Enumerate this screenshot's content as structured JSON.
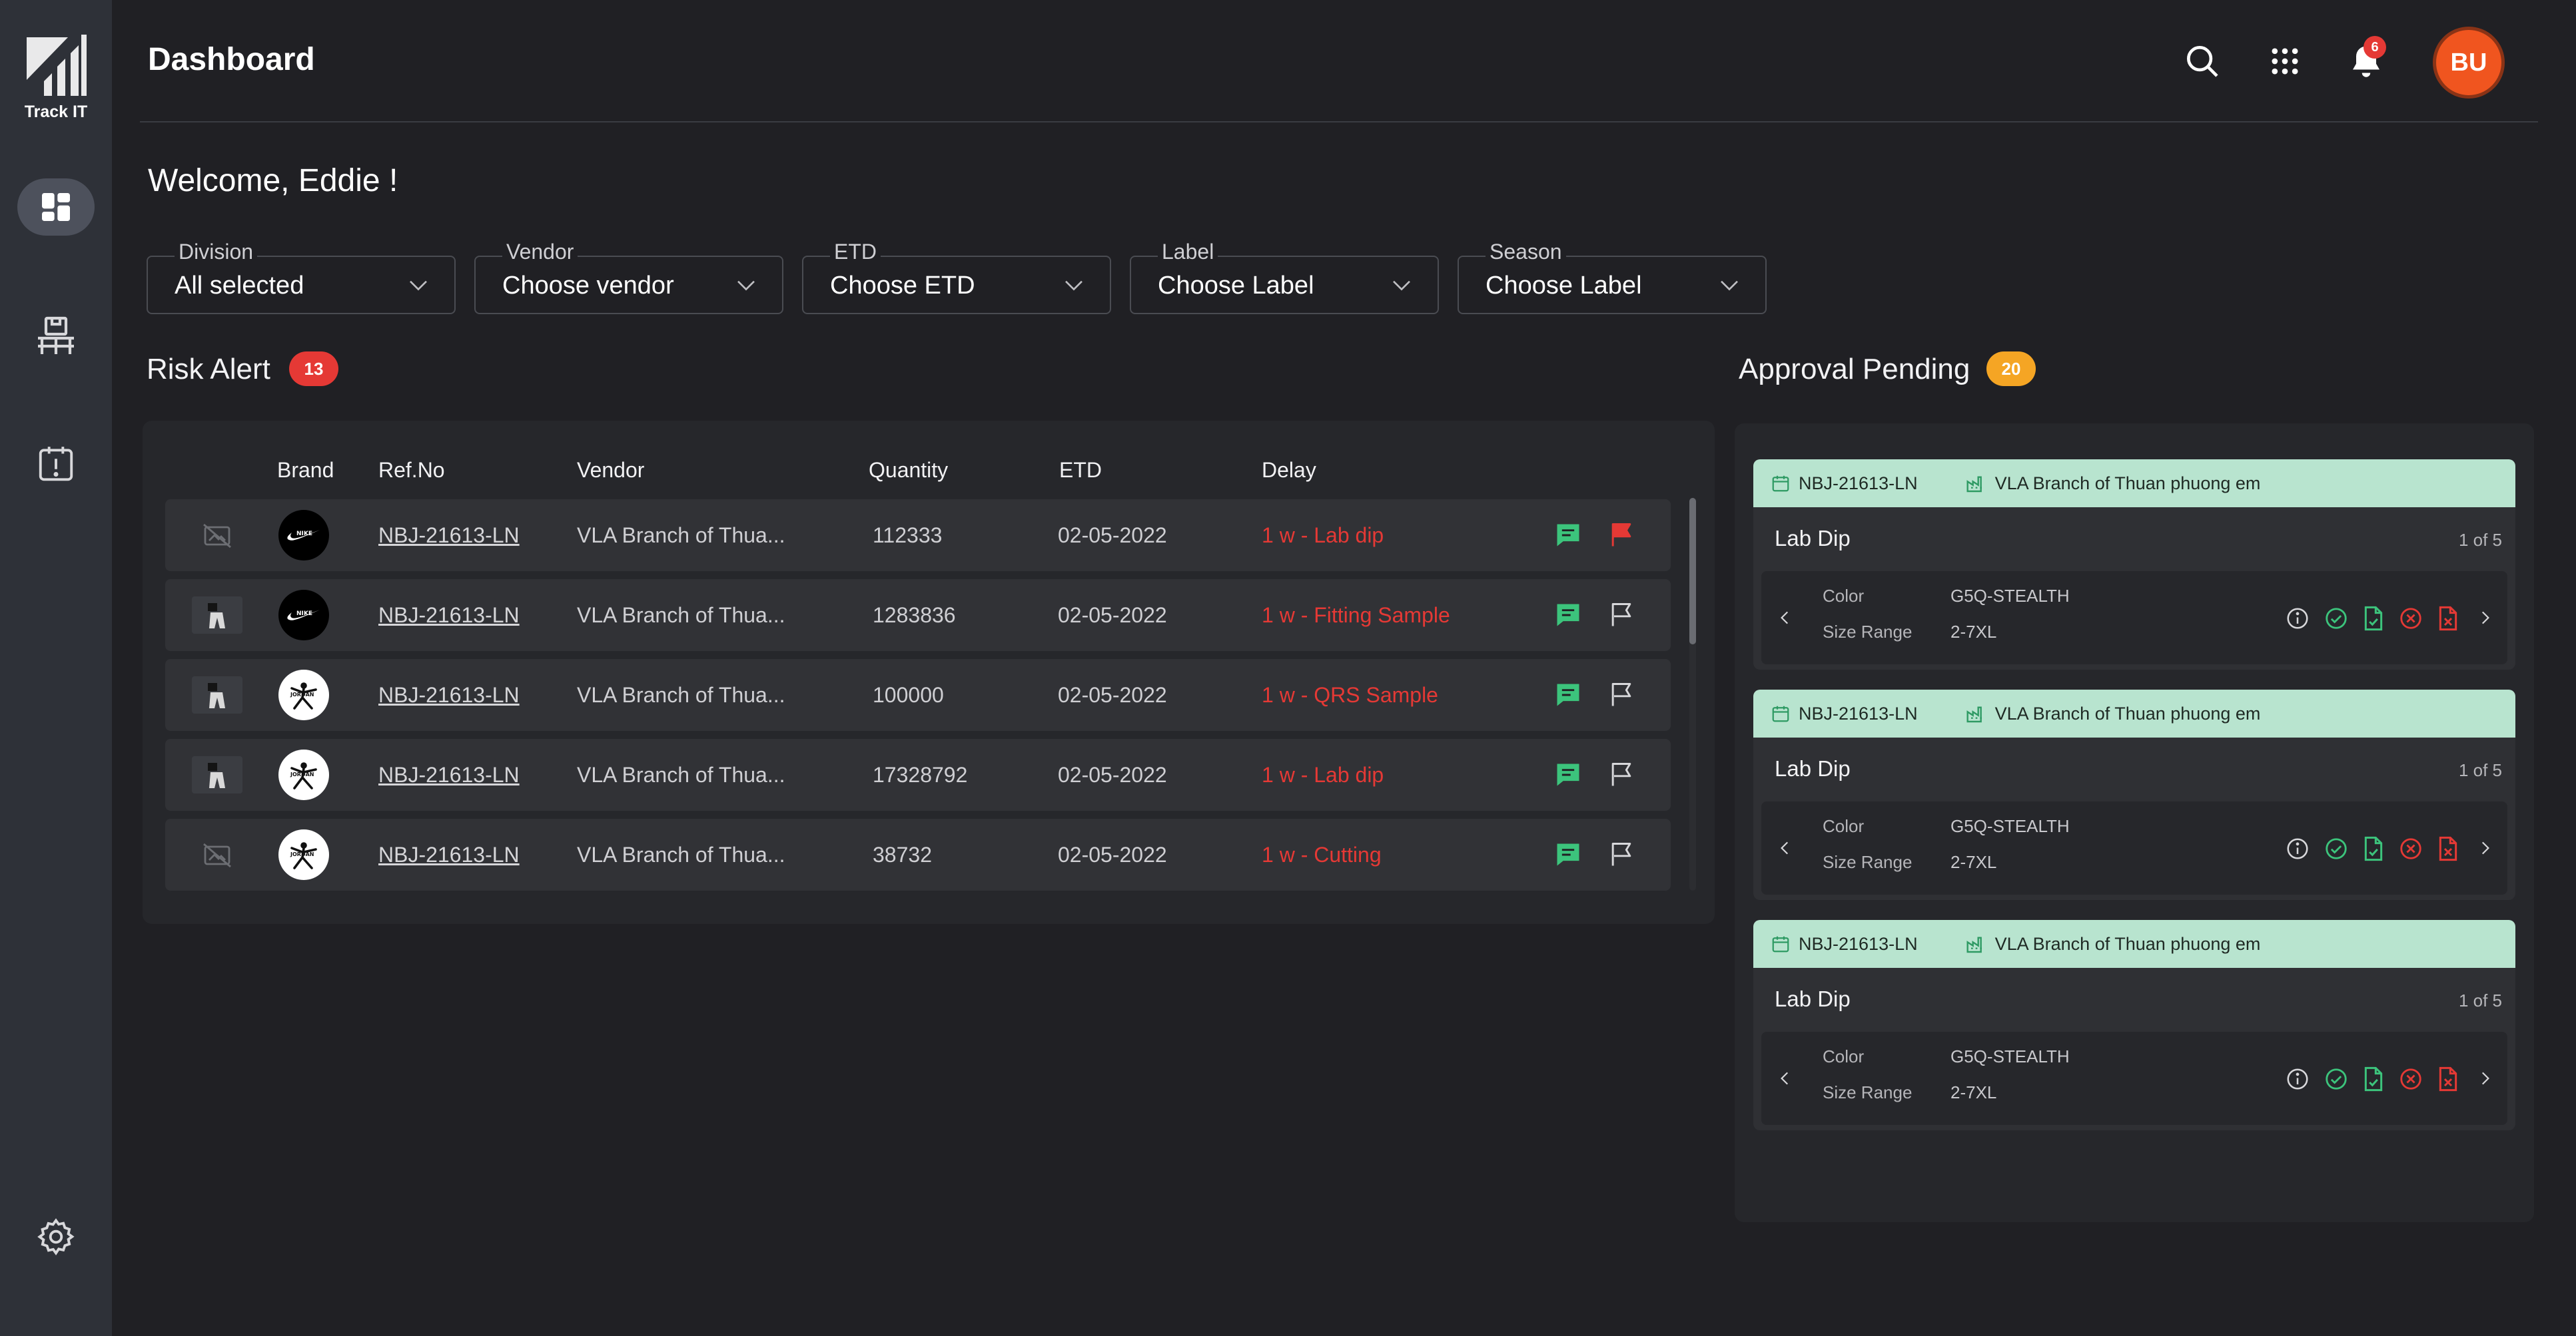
{
  "app": {
    "logo_text": "Track IT"
  },
  "header": {
    "title": "Dashboard",
    "notification_count": "6",
    "avatar_initials": "BU"
  },
  "welcome": "Welcome, Eddie  !",
  "filters": [
    {
      "label": "Division",
      "value": "All selected"
    },
    {
      "label": "Vendor",
      "value": "Choose vendor"
    },
    {
      "label": "ETD",
      "value": "Choose ETD"
    },
    {
      "label": "Label",
      "value": "Choose Label"
    },
    {
      "label": "Season",
      "value": "Choose Label"
    }
  ],
  "risk_alert": {
    "title": "Risk Alert",
    "count": "13",
    "columns": [
      "Brand",
      "Ref.No",
      "Vendor",
      "Quantity",
      "ETD",
      "Delay"
    ],
    "rows": [
      {
        "thumb": "no-image-icon",
        "brand": "nike",
        "ref": "NBJ-21613-LN",
        "vendor": "VLA Branch of Thua...",
        "quantity": "112333",
        "etd": "02-05-2022",
        "delay": "1 w - Lab dip",
        "flagged": true
      },
      {
        "thumb": "garment-thumb",
        "brand": "nike",
        "ref": "NBJ-21613-LN",
        "vendor": "VLA Branch of Thua...",
        "quantity": "1283836",
        "etd": "02-05-2022",
        "delay": "1 w - Fitting Sample",
        "flagged": false
      },
      {
        "thumb": "garment-thumb",
        "brand": "jordan",
        "ref": "NBJ-21613-LN",
        "vendor": "VLA Branch of Thua...",
        "quantity": "100000",
        "etd": "02-05-2022",
        "delay": "1 w - QRS Sample",
        "flagged": false
      },
      {
        "thumb": "garment-thumb",
        "brand": "jordan",
        "ref": "NBJ-21613-LN",
        "vendor": "VLA Branch of Thua...",
        "quantity": "17328792",
        "etd": "02-05-2022",
        "delay": "1 w - Lab dip",
        "flagged": false
      },
      {
        "thumb": "no-image-icon",
        "brand": "jordan",
        "ref": "NBJ-21613-LN",
        "vendor": "VLA Branch of Thua...",
        "quantity": "38732",
        "etd": "02-05-2022",
        "delay": "1 w - Cutting",
        "flagged": false
      }
    ]
  },
  "approval_pending": {
    "title": "Approval Pending",
    "count": "20",
    "cards": [
      {
        "ref": "NBJ-21613-LN",
        "vendor": "VLA Branch of Thuan phuong em",
        "title": "Lab Dip",
        "pager": "1 of 5",
        "color_label": "Color",
        "color": "G5Q-STEALTH",
        "size_label": "Size Range",
        "size": "2-7XL"
      },
      {
        "ref": "NBJ-21613-LN",
        "vendor": "VLA Branch of Thuan phuong em",
        "title": "Lab Dip",
        "pager": "1 of 5",
        "color_label": "Color",
        "color": "G5Q-STEALTH",
        "size_label": "Size Range",
        "size": "2-7XL"
      },
      {
        "ref": "NBJ-21613-LN",
        "vendor": "VLA Branch of Thuan phuong em",
        "title": "Lab Dip",
        "pager": "1 of 5",
        "color_label": "Color",
        "color": "G5Q-STEALTH",
        "size_label": "Size Range",
        "size": "2-7XL"
      }
    ]
  },
  "colors": {
    "accent_red": "#e53935",
    "accent_green": "#3cc47c",
    "badge_yellow": "#f5a524",
    "avatar": "#f0551f",
    "card_header": "#b8e4cf"
  }
}
